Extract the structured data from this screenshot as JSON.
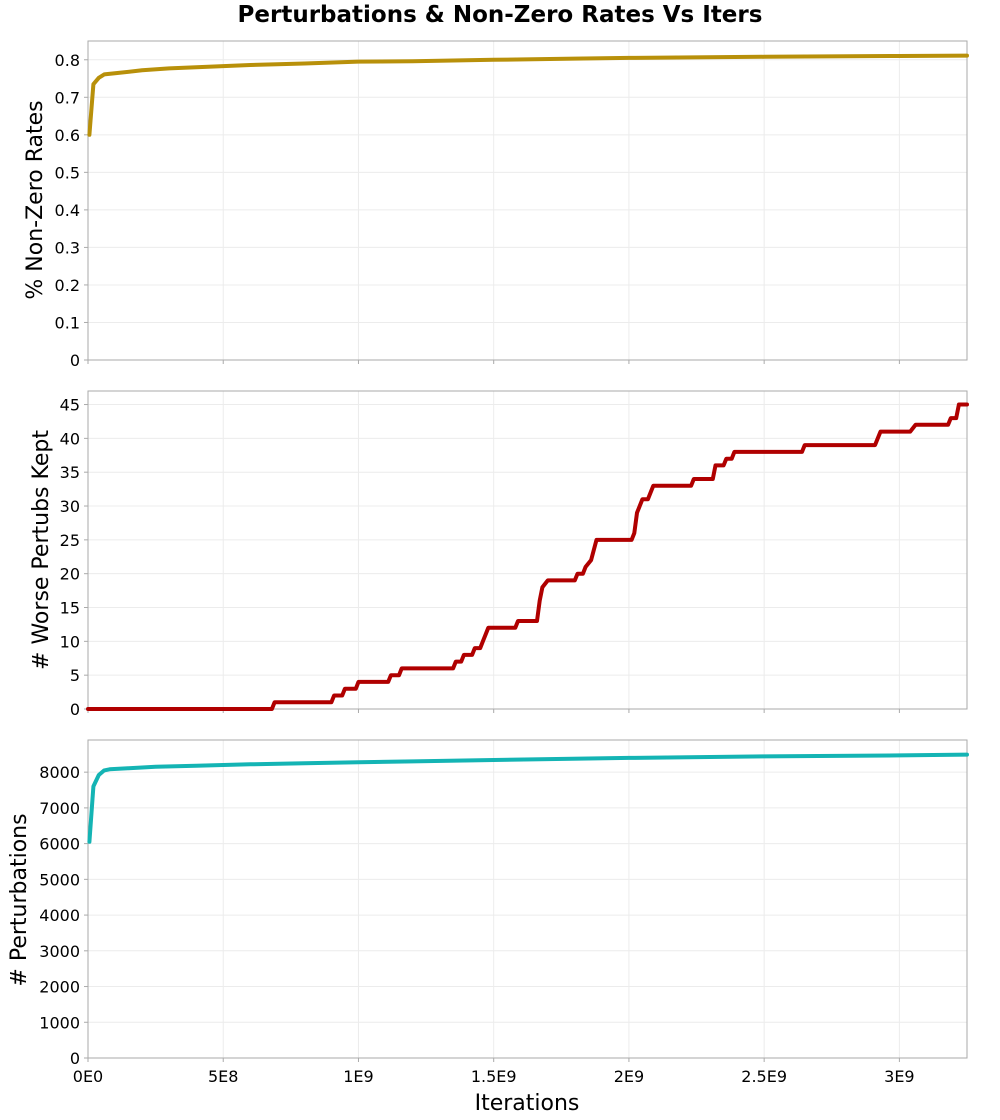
{
  "chart_data": [
    {
      "type": "line",
      "title": "Perturbations & Non-Zero Rates Vs Iters",
      "ylabel": "% Non-Zero Rates",
      "xlabel": "",
      "color": "#b8900a",
      "xlim": [
        0,
        3250000000
      ],
      "ylim": [
        0,
        0.85
      ],
      "yticks": [
        0,
        0.1,
        0.2,
        0.3,
        0.4,
        0.5,
        0.6,
        0.7,
        0.8
      ],
      "ytick_labels": [
        "0",
        "0.1",
        "0.2",
        "0.3",
        "0.4",
        "0.5",
        "0.6",
        "0.7",
        "0.8"
      ],
      "grid": true,
      "series": [
        {
          "x": [
            5000000,
            20000000,
            40000000,
            60000000,
            100000000,
            200000000,
            300000000,
            400000000,
            500000000,
            600000000,
            700000000,
            800000000,
            1000000000,
            1200000000,
            1500000000,
            1800000000,
            2000000000,
            2500000000,
            3000000000,
            3250000000
          ],
          "y": [
            0.6,
            0.735,
            0.752,
            0.761,
            0.764,
            0.772,
            0.777,
            0.78,
            0.783,
            0.786,
            0.788,
            0.79,
            0.795,
            0.796,
            0.8,
            0.803,
            0.805,
            0.808,
            0.81,
            0.811
          ]
        }
      ]
    },
    {
      "type": "line",
      "title": "",
      "ylabel": "# Worse Pertubs Kept",
      "xlabel": "",
      "color": "#b00000",
      "xlim": [
        0,
        3250000000
      ],
      "ylim": [
        0,
        47
      ],
      "yticks": [
        0,
        5,
        10,
        15,
        20,
        25,
        30,
        35,
        40,
        45
      ],
      "ytick_labels": [
        "0",
        "5",
        "10",
        "15",
        "20",
        "25",
        "30",
        "35",
        "40",
        "45"
      ],
      "grid": true,
      "series": [
        {
          "x": [
            0,
            680000000,
            690000000,
            900000000,
            910000000,
            940000000,
            950000000,
            990000000,
            1000000000,
            1110000000,
            1120000000,
            1150000000,
            1160000000,
            1350000000,
            1360000000,
            1380000000,
            1390000000,
            1420000000,
            1430000000,
            1450000000,
            1460000000,
            1480000000,
            1500000000,
            1580000000,
            1590000000,
            1660000000,
            1670000000,
            1680000000,
            1700000000,
            1800000000,
            1810000000,
            1830000000,
            1840000000,
            1860000000,
            1880000000,
            2010000000,
            2020000000,
            2030000000,
            2050000000,
            2070000000,
            2080000000,
            2090000000,
            2100000000,
            2230000000,
            2240000000,
            2310000000,
            2320000000,
            2350000000,
            2360000000,
            2380000000,
            2390000000,
            2410000000,
            2420000000,
            2640000000,
            2650000000,
            2910000000,
            2930000000,
            3040000000,
            3060000000,
            3180000000,
            3190000000,
            3210000000,
            3220000000,
            3250000000
          ],
          "y": [
            0,
            0,
            1,
            1,
            2,
            2,
            3,
            3,
            4,
            4,
            5,
            5,
            6,
            6,
            7,
            7,
            8,
            8,
            9,
            9,
            10,
            12,
            12,
            12,
            13,
            13,
            16,
            18,
            19,
            19,
            20,
            20,
            21,
            22,
            25,
            25,
            26,
            29,
            31,
            31,
            32,
            33,
            33,
            33,
            34,
            34,
            36,
            36,
            37,
            37,
            38,
            38,
            38,
            38,
            39,
            39,
            41,
            41,
            42,
            42,
            43,
            43,
            45,
            45
          ]
        }
      ]
    },
    {
      "type": "line",
      "title": "",
      "ylabel": "# Perturbations",
      "xlabel": "Iterations",
      "color": "#14b4b4",
      "xlim": [
        0,
        3250000000
      ],
      "ylim": [
        0,
        8900
      ],
      "yticks": [
        0,
        1000,
        2000,
        3000,
        4000,
        5000,
        6000,
        7000,
        8000
      ],
      "ytick_labels": [
        "0",
        "1000",
        "2000",
        "3000",
        "4000",
        "5000",
        "6000",
        "7000",
        "8000"
      ],
      "xticks": [
        0,
        500000000,
        1000000000,
        1500000000,
        2000000000,
        2500000000,
        3000000000
      ],
      "xtick_labels": [
        "0E0",
        "5E8",
        "1E9",
        "1.5E9",
        "2E9",
        "2.5E9",
        "3E9"
      ],
      "grid": true,
      "series": [
        {
          "x": [
            5000000,
            20000000,
            40000000,
            60000000,
            80000000,
            150000000,
            250000000,
            400000000,
            500000000,
            600000000,
            800000000,
            1000000000,
            1200000000,
            1500000000,
            2000000000,
            2500000000,
            3000000000,
            3250000000
          ],
          "y": [
            6050,
            7600,
            7920,
            8050,
            8080,
            8110,
            8150,
            8180,
            8200,
            8220,
            8250,
            8280,
            8300,
            8340,
            8400,
            8440,
            8470,
            8490
          ]
        }
      ]
    }
  ]
}
